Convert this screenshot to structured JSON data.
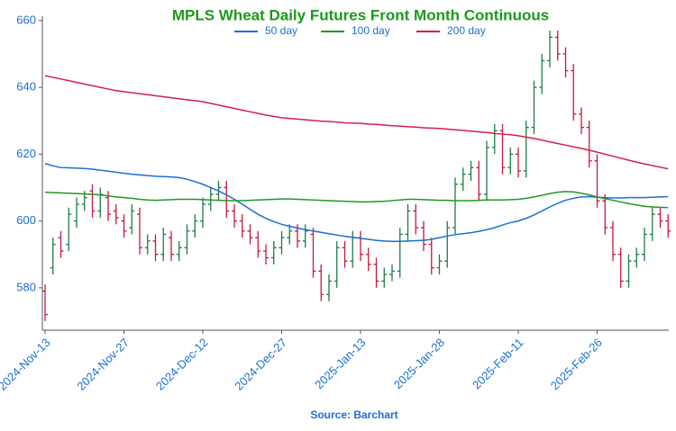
{
  "chart_data": {
    "type": "ohlc",
    "title": "MPLS Wheat Daily Futures Front Month Continuous",
    "source": "Source: Barchart",
    "categories": [
      "2024-Nov-13",
      null,
      null,
      null,
      null,
      null,
      null,
      null,
      null,
      null,
      "2024-Nov-27",
      null,
      null,
      null,
      null,
      null,
      null,
      null,
      null,
      null,
      "2024-Dec-12",
      null,
      null,
      null,
      null,
      null,
      null,
      null,
      null,
      null,
      "2024-Dec-27",
      null,
      null,
      null,
      null,
      null,
      null,
      null,
      null,
      null,
      "2025-Jan-13",
      null,
      null,
      null,
      null,
      null,
      null,
      null,
      null,
      null,
      "2025-Jan-28",
      null,
      null,
      null,
      null,
      null,
      null,
      null,
      null,
      null,
      "2025-Feb-11",
      null,
      null,
      null,
      null,
      null,
      null,
      null,
      null,
      null,
      "2025-Feb-26",
      null,
      null,
      null,
      null,
      null,
      null,
      null,
      null,
      null
    ],
    "ohlc": {
      "up_color": "#1e7b45",
      "down_color": "#c8173f",
      "open": [
        579,
        586,
        595,
        593,
        600,
        605,
        609,
        603,
        607,
        603,
        600,
        598,
        602,
        592,
        594,
        590,
        595,
        590,
        592,
        597,
        600,
        605,
        608,
        610,
        603,
        600,
        597,
        595,
        591,
        589,
        592,
        595,
        597,
        594,
        596,
        585,
        578,
        582,
        592,
        588,
        595,
        590,
        587,
        582,
        584,
        585,
        596,
        603,
        598,
        593,
        586,
        588,
        598,
        611,
        614,
        616,
        608,
        622,
        627,
        616,
        620,
        615,
        628,
        640,
        648,
        655,
        650,
        645,
        632,
        628,
        618,
        606,
        598,
        590,
        582,
        588,
        590,
        596,
        602,
        600
      ],
      "high": [
        581,
        595,
        597,
        604,
        607,
        609,
        611,
        610,
        609,
        605,
        602,
        605,
        604,
        596,
        596,
        598,
        597,
        594,
        599,
        602,
        607,
        610,
        612,
        612,
        605,
        602,
        599,
        597,
        593,
        594,
        597,
        599,
        599,
        599,
        598,
        587,
        584,
        594,
        594,
        597,
        597,
        592,
        589,
        586,
        587,
        598,
        605,
        605,
        600,
        595,
        590,
        600,
        613,
        616,
        618,
        618,
        624,
        629,
        629,
        622,
        622,
        630,
        642,
        650,
        657,
        657,
        652,
        647,
        634,
        630,
        620,
        608,
        600,
        592,
        590,
        592,
        598,
        604,
        604,
        602
      ],
      "low": [
        570,
        584,
        589,
        591,
        598,
        603,
        601,
        601,
        600,
        599,
        595,
        596,
        590,
        590,
        588,
        588,
        588,
        588,
        590,
        595,
        598,
        603,
        606,
        601,
        598,
        595,
        593,
        589,
        587,
        587,
        590,
        593,
        592,
        592,
        583,
        576,
        576,
        580,
        586,
        586,
        588,
        585,
        580,
        580,
        582,
        583,
        594,
        596,
        591,
        584,
        584,
        586,
        596,
        609,
        612,
        606,
        606,
        620,
        614,
        614,
        613,
        613,
        626,
        638,
        646,
        648,
        643,
        630,
        626,
        616,
        604,
        596,
        588,
        580,
        580,
        586,
        588,
        594,
        598,
        595
      ],
      "close": [
        572,
        593,
        591,
        602,
        605,
        607,
        603,
        608,
        602,
        601,
        597,
        603,
        592,
        594,
        590,
        596,
        590,
        592,
        597,
        600,
        605,
        608,
        610,
        603,
        600,
        597,
        595,
        591,
        589,
        592,
        595,
        597,
        594,
        597,
        585,
        578,
        582,
        592,
        588,
        595,
        590,
        587,
        582,
        584,
        585,
        596,
        603,
        598,
        593,
        586,
        588,
        598,
        611,
        614,
        616,
        608,
        622,
        627,
        616,
        620,
        615,
        628,
        640,
        648,
        655,
        650,
        645,
        632,
        628,
        618,
        606,
        598,
        590,
        582,
        588,
        590,
        596,
        602,
        600,
        597
      ]
    },
    "series": [
      {
        "name": "50 day",
        "color": "#1a6fd6",
        "values": [
          617.2,
          616.5,
          616,
          615.9,
          615.8,
          615.7,
          615.5,
          615.2,
          614.9,
          614.6,
          614.3,
          614,
          613.8,
          613.6,
          613.4,
          613.3,
          613.2,
          613,
          612.5,
          611.8,
          611,
          610,
          609,
          607.8,
          606.5,
          605,
          603.5,
          602,
          600.8,
          599.8,
          599,
          598.4,
          597.9,
          597.4,
          597,
          596.6,
          596.2,
          595.8,
          595.4,
          595.1,
          594.8,
          594.5,
          594.2,
          594,
          593.9,
          593.9,
          594,
          594.1,
          594.2,
          594.5,
          595,
          595.5,
          595.9,
          596.2,
          596.5,
          596.9,
          597.4,
          598,
          598.8,
          599.5,
          600,
          600.8,
          601.8,
          603,
          604.2,
          605.3,
          606.2,
          606.8,
          607.2,
          607.3,
          607.1,
          607,
          606.9,
          606.9,
          607,
          607,
          607,
          607.1,
          607.2,
          607.3
        ]
      },
      {
        "name": "100 day",
        "color": "#1f9a1f",
        "values": [
          608.6,
          608.5,
          608.4,
          608.3,
          608.2,
          608.1,
          608,
          607.8,
          607.5,
          607.2,
          607,
          606.8,
          606.5,
          606.3,
          606.2,
          606.3,
          606.4,
          606.5,
          606.5,
          606.5,
          606.4,
          606.3,
          606.2,
          606.1,
          606.1,
          606.1,
          606.2,
          606.3,
          606.4,
          606.5,
          606.6,
          606.6,
          606.5,
          606.4,
          606.3,
          606.2,
          606.1,
          606,
          605.9,
          605.8,
          605.7,
          605.7,
          605.8,
          605.9,
          606.1,
          606.3,
          606.5,
          606.5,
          606.4,
          606.3,
          606.2,
          606.2,
          606.1,
          606.1,
          606.1,
          606.2,
          606.3,
          606.3,
          606.3,
          606.4,
          606.5,
          606.8,
          607.2,
          607.7,
          608.2,
          608.6,
          608.8,
          608.7,
          608.3,
          607.8,
          607.2,
          606.7,
          606.2,
          605.7,
          605.2,
          604.8,
          604.4,
          604.2,
          604.1,
          604
        ]
      },
      {
        "name": "200 day",
        "color": "#d41f4a",
        "values": [
          643.5,
          643,
          642.5,
          642,
          641.5,
          641,
          640.5,
          640,
          639.5,
          639,
          638.7,
          638.4,
          638.1,
          637.8,
          637.5,
          637.2,
          636.9,
          636.6,
          636.3,
          636,
          635.7,
          635.2,
          634.7,
          634.2,
          633.7,
          633.2,
          632.7,
          632.2,
          631.7,
          631.3,
          630.9,
          630.7,
          630.5,
          630.3,
          630.1,
          629.9,
          629.8,
          629.6,
          629.4,
          629.3,
          629.2,
          629,
          628.9,
          628.7,
          628.5,
          628.4,
          628.2,
          628.1,
          627.9,
          627.8,
          627.7,
          627.5,
          627.3,
          627.1,
          626.9,
          626.7,
          626.5,
          626.2,
          626,
          625.8,
          625.5,
          625.1,
          624.7,
          624.2,
          623.7,
          623.2,
          622.7,
          622.2,
          621.7,
          621.2,
          620.6,
          620,
          619.4,
          618.8,
          618.2,
          617.6,
          617.1,
          616.6,
          616.1,
          615.6
        ]
      }
    ],
    "ylim": [
      567.3,
      661.3
    ],
    "yticks": [
      580,
      600,
      620,
      640,
      660
    ],
    "title_color": "#1a9a1a",
    "text_color": "#1a6fd6"
  }
}
